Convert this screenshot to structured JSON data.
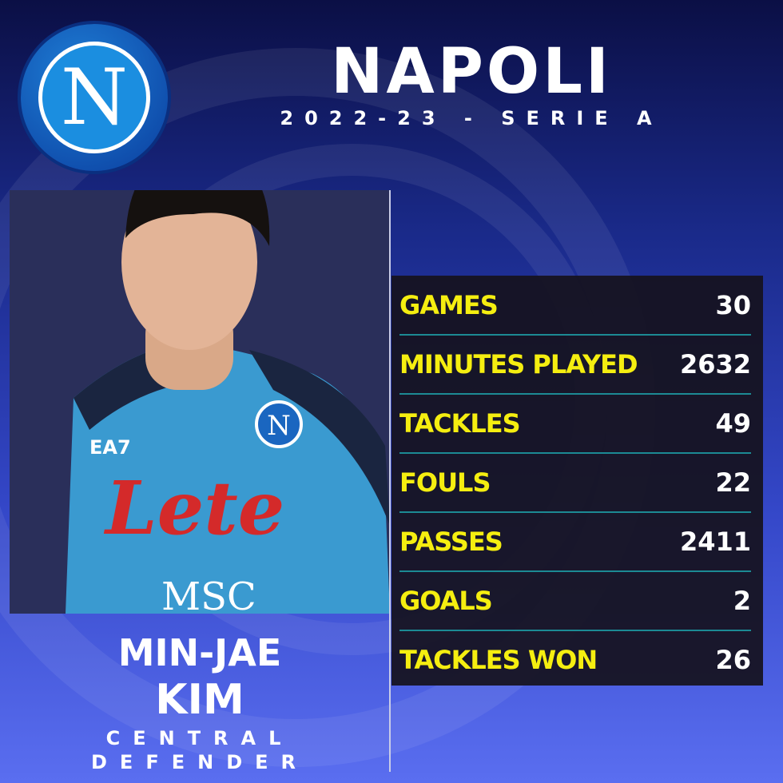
{
  "header": {
    "title": "NAPOLI",
    "subtitle": "2022-23 - SERIE A",
    "logo_letter": "N"
  },
  "player": {
    "first_name": "MIN-JAE",
    "last_name": "KIM",
    "position_line1": "CENTRAL",
    "position_line2": "DEFENDER",
    "shirt_sponsor": "Lete",
    "shirt_sponsor2": "MSC",
    "shirt_brand": "EA7"
  },
  "stats": [
    {
      "label": "GAMES",
      "value": "30"
    },
    {
      "label": "MINUTES PLAYED",
      "value": "2632"
    },
    {
      "label": "TACKLES",
      "value": "49"
    },
    {
      "label": "FOULS",
      "value": "22"
    },
    {
      "label": "PASSES",
      "value": "2411"
    },
    {
      "label": "GOALS",
      "value": "2"
    },
    {
      "label": "TACKLES WON",
      "value": "26"
    }
  ],
  "colors": {
    "label": "#f5ee10",
    "value": "#ffffff",
    "divider": "#1c8a94",
    "panel": "#16121e"
  }
}
